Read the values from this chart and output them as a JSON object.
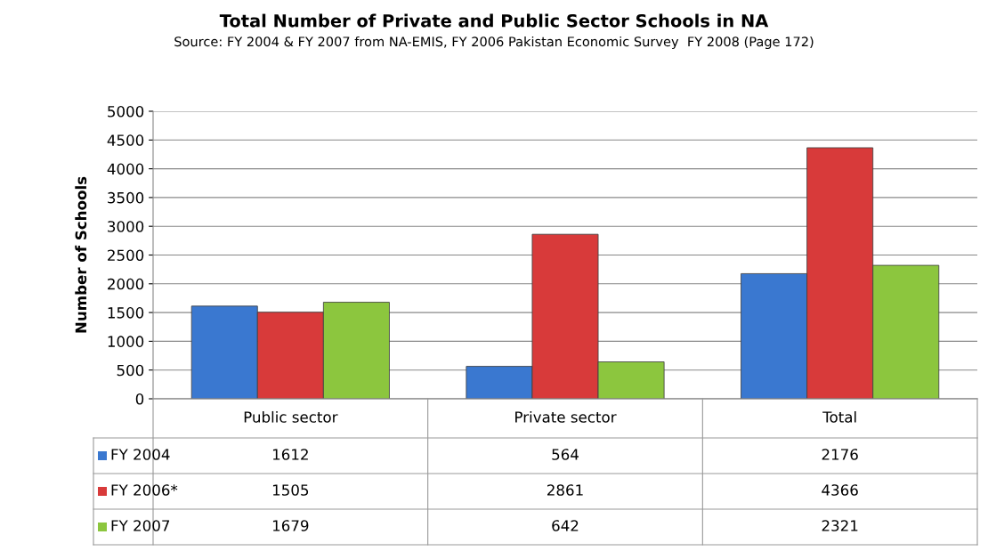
{
  "chart_data": {
    "type": "bar",
    "title": "Total Number of Private and Public Sector Schools in NA",
    "subtitle": "Source: FY 2004 & FY 2007 from NA-EMIS, FY 2006 Pakistan Economic Survey  FY 2008 (Page 172)",
    "ylabel": "Number of Schools",
    "categories": [
      "Public sector",
      "Private sector",
      "Total"
    ],
    "series": [
      {
        "name": "FY 2004",
        "color": "#3a78d0",
        "values": [
          1612,
          564,
          2176
        ]
      },
      {
        "name": "FY 2006*",
        "color": "#d83a3a",
        "values": [
          1505,
          2861,
          4366
        ]
      },
      {
        "name": "FY 2007",
        "color": "#8cc63e",
        "values": [
          1679,
          642,
          2321
        ]
      }
    ],
    "ylim": [
      0,
      5000
    ],
    "yticks": [
      0,
      500,
      1000,
      1500,
      2000,
      2500,
      3000,
      3500,
      4000,
      4500,
      5000
    ],
    "grid": "y",
    "legend": "bottom",
    "data_labels": true
  }
}
